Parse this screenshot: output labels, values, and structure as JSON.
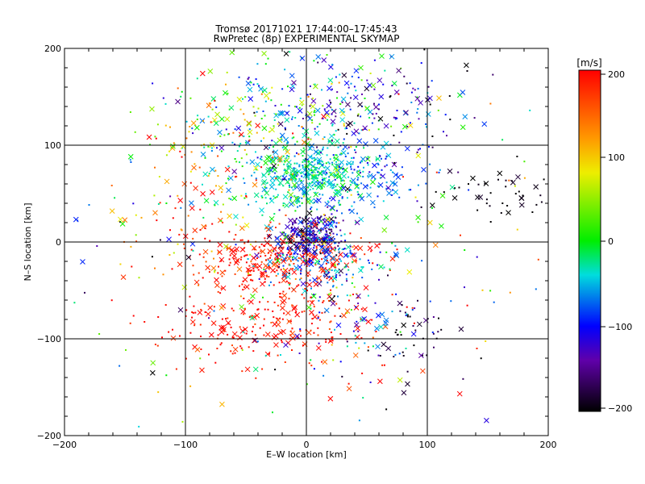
{
  "chart_data": {
    "type": "scatter",
    "title": "Tromsø 20171021 17:44:00–17:45:43",
    "subtitle": "RwPretec (8p) EXPERIMENTAL SKYMAP",
    "xlabel": "E–W location [km]",
    "ylabel": "N–S location [km]",
    "xlim": [
      -200,
      200
    ],
    "ylim": [
      -200,
      200
    ],
    "xticks": [
      "−200",
      "−100",
      "0",
      "100",
      "200"
    ],
    "yticks": [
      "−200",
      "−100",
      "0",
      "100",
      "200"
    ],
    "grid": true,
    "colorbar": {
      "unit_label": "[m/s]",
      "range": [
        -200,
        200
      ],
      "ticks": [
        "200",
        "100",
        "0",
        "−100",
        "−200"
      ],
      "colormap": "rainbow (black at −200, red at +200)"
    },
    "marker_types": [
      "dot",
      "x"
    ],
    "clusters": [
      {
        "x": 0,
        "y": 70,
        "sx": 25,
        "sy": 20,
        "v": -30,
        "sv": 25,
        "n": 420
      },
      {
        "x": 45,
        "y": 65,
        "sx": 25,
        "sy": 18,
        "v": -70,
        "sv": 30,
        "n": 130
      },
      {
        "x": -20,
        "y": -15,
        "sx": 30,
        "sy": 14,
        "v": 190,
        "sv": 25,
        "n": 280
      },
      {
        "x": 5,
        "y": 5,
        "sx": 14,
        "sy": 12,
        "v": -130,
        "sv": 40,
        "n": 260
      },
      {
        "x": 20,
        "y": -20,
        "sx": 25,
        "sy": 20,
        "v": -70,
        "sv": 40,
        "n": 140
      },
      {
        "x": -30,
        "y": -80,
        "sx": 45,
        "sy": 25,
        "v": 190,
        "sv": 20,
        "n": 280
      },
      {
        "x": 0,
        "y": 140,
        "sx": 45,
        "sy": 30,
        "v": -40,
        "sv": 70,
        "n": 200
      },
      {
        "x": -60,
        "y": 100,
        "sx": 35,
        "sy": 30,
        "v": 60,
        "sv": 80,
        "n": 120
      },
      {
        "x": 60,
        "y": 140,
        "sx": 40,
        "sy": 30,
        "v": -130,
        "sv": 50,
        "n": 110
      },
      {
        "x": 160,
        "y": 50,
        "sx": 25,
        "sy": 15,
        "v": -195,
        "sv": 8,
        "n": 45
      },
      {
        "x": 90,
        "y": -100,
        "sx": 15,
        "sy": 20,
        "v": -185,
        "sv": 15,
        "n": 35
      },
      {
        "x": 40,
        "y": -80,
        "sx": 30,
        "sy": 25,
        "v": -100,
        "sv": 50,
        "n": 60
      },
      {
        "x": -90,
        "y": 20,
        "sx": 40,
        "sy": 40,
        "v": 150,
        "sv": 60,
        "n": 80
      },
      {
        "x": 0,
        "y": 0,
        "sx": 110,
        "sy": 110,
        "v": 0,
        "sv": 130,
        "n": 300
      }
    ]
  }
}
